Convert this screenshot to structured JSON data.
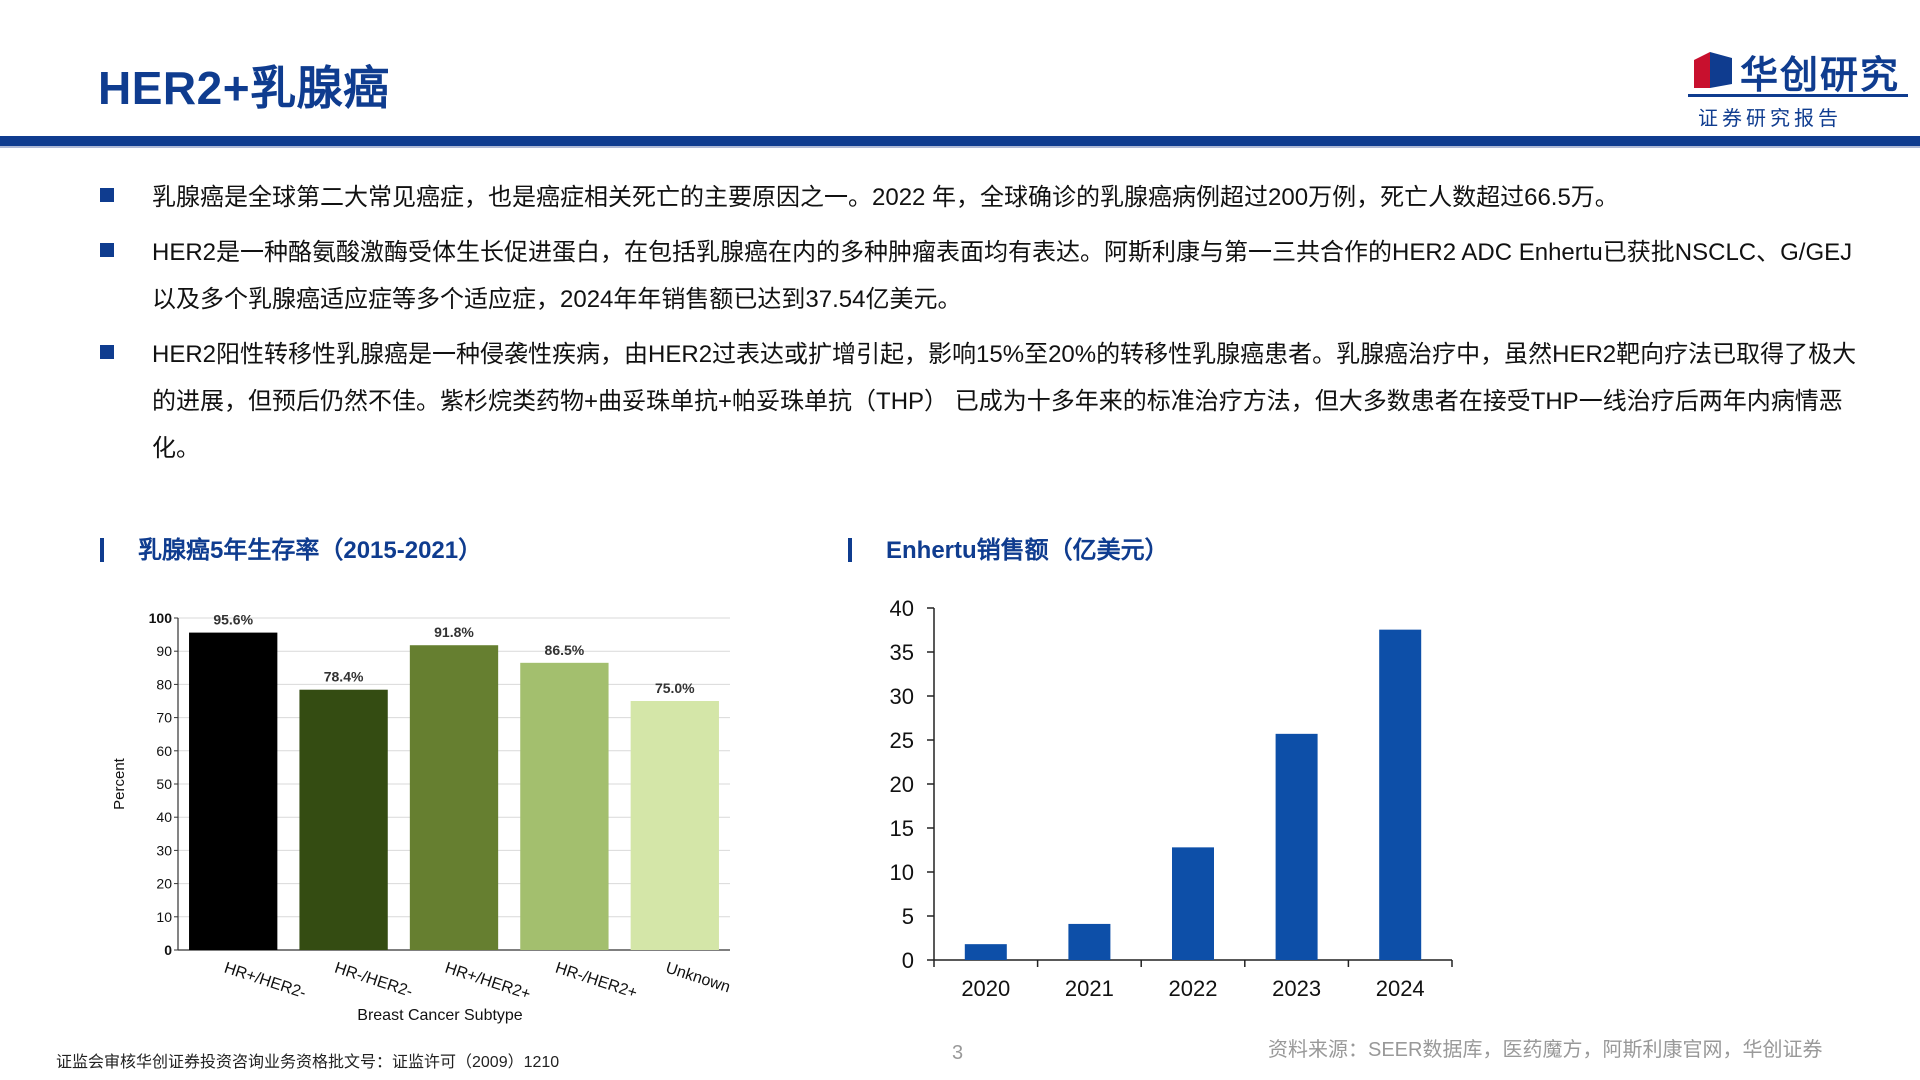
{
  "header": {
    "title": "HER2+乳腺癌",
    "logo_name": "华创研究",
    "logo_sub": "证券研究报告"
  },
  "bullets": [
    "乳腺癌是全球第二大常见癌症，也是癌症相关死亡的主要原因之一。2022 年，全球确诊的乳腺癌病例超过200万例，死亡人数超过66.5万。",
    "HER2是一种酪氨酸激酶受体生长促进蛋白，在包括乳腺癌在内的多种肿瘤表面均有表达。阿斯利康与第一三共合作的HER2 ADC Enhertu已获批NSCLC、G/GEJ以及多个乳腺癌适应症等多个适应症，2024年年销售额已达到37.54亿美元。",
    "HER2阳性转移性乳腺癌是一种侵袭性疾病，由HER2过表达或扩增引起，影响15%至20%的转移性乳腺癌患者。乳腺癌治疗中，虽然HER2靶向疗法已取得了极大的进展，但预后仍然不佳。紫杉烷类药物+曲妥珠单抗+帕妥珠单抗（THP） 已成为十多年来的标准治疗方法，但大多数患者在接受THP一线治疗后两年内病情恶化。"
  ],
  "sections": {
    "left_title": "乳腺癌5年生存率（2015-2021）",
    "right_title": "Enhertu销售额（亿美元）"
  },
  "chart_data": [
    {
      "type": "bar",
      "title": "乳腺癌5年生存率（2015-2021）",
      "categories": [
        "HR+/HER2-",
        "HR-/HER2-",
        "HR+/HER2+",
        "HR-/HER2+",
        "Unknown"
      ],
      "values": [
        95.6,
        78.4,
        91.8,
        86.5,
        75.0
      ],
      "labels": [
        "95.6%",
        "78.4%",
        "91.8%",
        "86.5%",
        "75.0%"
      ],
      "colors": [
        "#000000",
        "#344c12",
        "#667f30",
        "#a3bf6e",
        "#d4e6a8"
      ],
      "xlabel": "Breast Cancer Subtype",
      "ylabel": "Percent",
      "ylim": [
        0,
        100
      ],
      "yticks": [
        0,
        10,
        20,
        30,
        40,
        50,
        60,
        70,
        80,
        90,
        100
      ],
      "grid": true
    },
    {
      "type": "bar",
      "title": "Enhertu销售额（亿美元）",
      "categories": [
        "2020",
        "2021",
        "2022",
        "2023",
        "2024"
      ],
      "values": [
        1.8,
        4.1,
        12.8,
        25.7,
        37.54
      ],
      "color": "#0d4fa8",
      "xlabel": "",
      "ylabel": "",
      "ylim": [
        0,
        40
      ],
      "yticks": [
        0,
        5,
        10,
        15,
        20,
        25,
        30,
        35,
        40
      ],
      "grid": false
    }
  ],
  "footer": {
    "license": "证监会审核华创证券投资咨询业务资格批文号：证监许可（2009）1210",
    "page": "3",
    "source": "资料来源：SEER数据库，医药魔方，阿斯利康官网，华创证券"
  }
}
